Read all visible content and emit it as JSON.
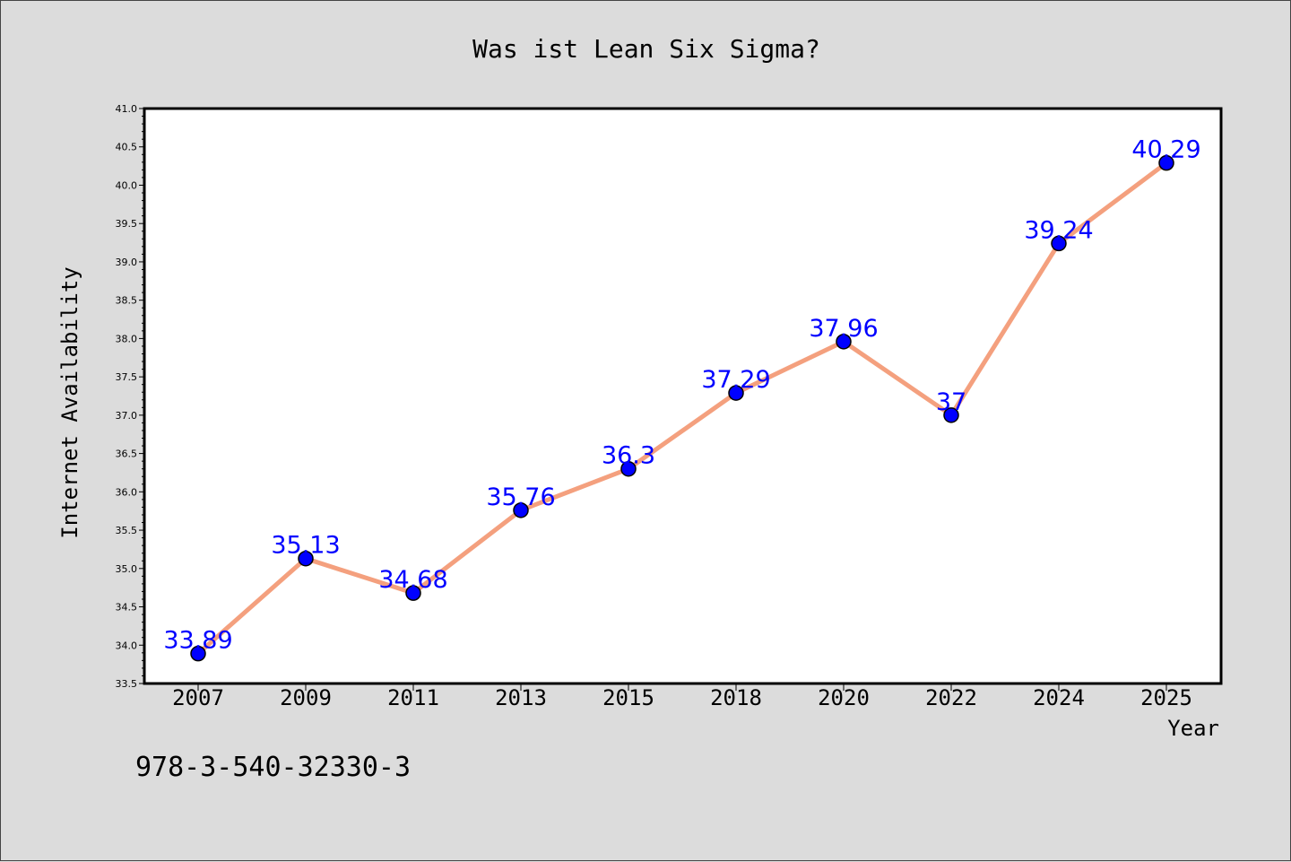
{
  "chart_data": {
    "type": "line",
    "title": "Was ist Lean Six Sigma?",
    "xlabel": "Year",
    "ylabel": "Internet Availability",
    "categories": [
      "2007",
      "2009",
      "2011",
      "2013",
      "2015",
      "2018",
      "2020",
      "2022",
      "2024",
      "2025"
    ],
    "series": [
      {
        "values": [
          33.89,
          35.13,
          34.68,
          35.76,
          36.3,
          37.29,
          37.96,
          37,
          39.24,
          40.29
        ],
        "data_labels": [
          "33.89",
          "35.13",
          "34.68",
          "35.76",
          "36.3",
          "37.29",
          "37.96",
          "37",
          "39.24",
          "40.29"
        ]
      }
    ],
    "ylim": [
      33.5,
      41.0
    ],
    "yticks": [
      "33.5",
      "34.0",
      "34.5",
      "35.0",
      "35.5",
      "36.0",
      "36.5",
      "37.0",
      "37.5",
      "38.0",
      "38.5",
      "39.0",
      "39.5",
      "40.0",
      "40.5",
      "41.0"
    ],
    "grid": false,
    "legend": "none",
    "colors": {
      "line": "#f4a07e",
      "marker": "#0000ff",
      "data_label": "#0000ff",
      "background": "#dcdcdc",
      "plot_background": "#ffffff"
    }
  },
  "footer": {
    "isbn": "978-3-540-32330-3"
  }
}
